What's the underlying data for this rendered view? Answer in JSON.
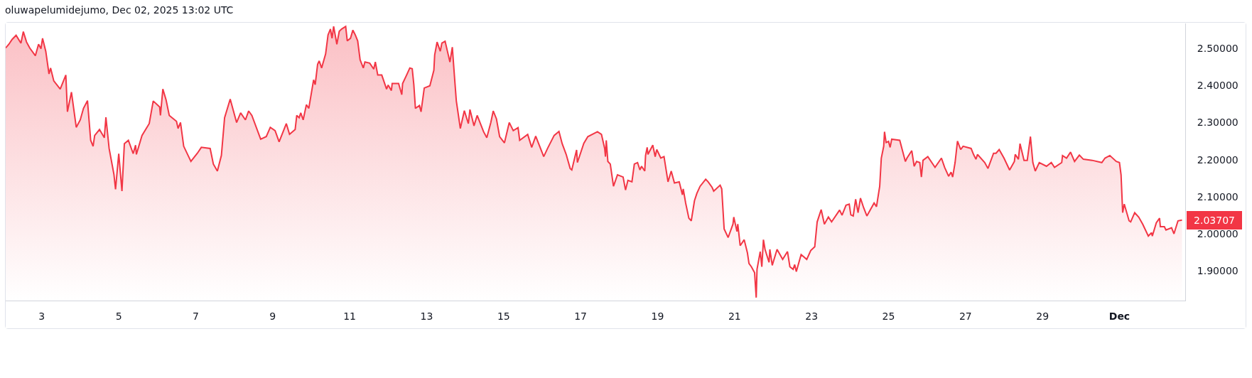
{
  "chart_data": {
    "type": "area",
    "title": "oluwapelumidejumo, Dec 02, 2025 13:02 UTC",
    "x": [
      "2025-11-02T01:30",
      "2025-11-02T03:30",
      "2025-11-02T05:30",
      "2025-11-02T08:00",
      "2025-11-02T11:00",
      "2025-11-02T12:30",
      "2025-11-02T14:30",
      "2025-11-02T16:30",
      "2025-11-02T20:00",
      "2025-11-02T22:00",
      "2025-11-02T23:30",
      "2025-11-03T00:30",
      "2025-11-03T02:30",
      "2025-11-03T04:30",
      "2025-11-03T05:30",
      "2025-11-03T07:30",
      "2025-11-03T11:30",
      "2025-11-03T15:00",
      "2025-11-03T16:00",
      "2025-11-03T18:30",
      "2025-11-03T21:30",
      "2025-11-04T00:00",
      "2025-11-04T02:00",
      "2025-11-04T04:30",
      "2025-11-04T06:30",
      "2025-11-04T08:00",
      "2025-11-04T09:00",
      "2025-11-04T12:00",
      "2025-11-04T15:00",
      "2025-11-04T16:00",
      "2025-11-04T18:00",
      "2025-11-04T21:00",
      "2025-11-04T22:00",
      "2025-11-05T00:00",
      "2025-11-05T02:00",
      "2025-11-05T03:30",
      "2025-11-05T06:00",
      "2025-11-05T09:00",
      "2025-11-05T10:30",
      "2025-11-05T11:00",
      "2025-11-05T14:30",
      "2025-11-05T19:00",
      "2025-11-05T21:30",
      "2025-11-06T01:30",
      "2025-11-06T02:00",
      "2025-11-06T03:30",
      "2025-11-06T05:30",
      "2025-11-06T07:30",
      "2025-11-06T12:00",
      "2025-11-06T13:00",
      "2025-11-06T14:30",
      "2025-11-06T16:30",
      "2025-11-06T21:00",
      "2025-11-07T01:00",
      "2025-11-07T03:30",
      "2025-11-07T09:00",
      "2025-11-07T11:00",
      "2025-11-07T13:30",
      "2025-11-07T16:00",
      "2025-11-07T18:00",
      "2025-11-07T21:30",
      "2025-11-08T01:30",
      "2025-11-08T04:00",
      "2025-11-08T07:00",
      "2025-11-08T09:00",
      "2025-11-08T11:00",
      "2025-11-08T16:30",
      "2025-11-08T20:00",
      "2025-11-08T22:30",
      "2025-11-09T01:30",
      "2025-11-09T04:00",
      "2025-11-09T08:30",
      "2025-11-09T10:30",
      "2025-11-09T14:00",
      "2025-11-09T15:00",
      "2025-11-09T16:30",
      "2025-11-09T17:30",
      "2025-11-09T19:00",
      "2025-11-09T21:00",
      "2025-11-09T22:30",
      "2025-11-10T01:30",
      "2025-11-10T02:30",
      "2025-11-10T04:00",
      "2025-11-10T05:00",
      "2025-11-10T06:30",
      "2025-11-10T09:00",
      "2025-11-10T10:30",
      "2025-11-10T12:00",
      "2025-11-10T13:00",
      "2025-11-10T14:00",
      "2025-11-10T16:00",
      "2025-11-10T17:30",
      "2025-11-10T19:00",
      "2025-11-10T21:30",
      "2025-11-10T22:30",
      "2025-11-11T00:30",
      "2025-11-11T02:00",
      "2025-11-11T03:30",
      "2025-11-11T05:00",
      "2025-11-11T06:30",
      "2025-11-11T08:30",
      "2025-11-11T09:30",
      "2025-11-11T12:30",
      "2025-11-11T15:00",
      "2025-11-11T16:00",
      "2025-11-11T17:30",
      "2025-11-11T20:00",
      "2025-11-11T23:00",
      "2025-11-12T00:00",
      "2025-11-12T02:00",
      "2025-11-12T02:30",
      "2025-11-12T06:30",
      "2025-11-12T08:30",
      "2025-11-12T09:00",
      "2025-11-12T11:30",
      "2025-11-12T13:30",
      "2025-11-12T15:00",
      "2025-11-12T16:00",
      "2025-11-12T17:00",
      "2025-11-12T19:30",
      "2025-11-12T20:30",
      "2025-11-12T22:30",
      "2025-11-13T02:00",
      "2025-11-13T04:30",
      "2025-11-13T05:00",
      "2025-11-13T06:30",
      "2025-11-13T08:30",
      "2025-11-13T09:30",
      "2025-11-13T11:30",
      "2025-11-13T13:30",
      "2025-11-13T14:30",
      "2025-11-13T16:00",
      "2025-11-13T17:30",
      "2025-11-13T18:30",
      "2025-11-13T21:00",
      "2025-11-13T23:30",
      "2025-11-14T02:00",
      "2025-11-14T03:00",
      "2025-11-14T05:30",
      "2025-11-14T07:30",
      "2025-11-14T11:30",
      "2025-11-14T13:30",
      "2025-11-14T16:00",
      "2025-11-14T17:30",
      "2025-11-14T19:30",
      "2025-11-14T21:30",
      "2025-11-15T00:30",
      "2025-11-15T03:30",
      "2025-11-15T06:00",
      "2025-11-15T09:00",
      "2025-11-15T10:00",
      "2025-11-15T15:00",
      "2025-11-15T17:30",
      "2025-11-15T20:00",
      "2025-11-15T23:00",
      "2025-11-16T01:00",
      "2025-11-16T03:30",
      "2025-11-16T07:30",
      "2025-11-16T10:30",
      "2025-11-16T12:30",
      "2025-11-16T15:00",
      "2025-11-16T17:30",
      "2025-11-16T18:30",
      "2025-11-16T21:30",
      "2025-11-16T22:00",
      "2025-11-17T02:00",
      "2025-11-17T04:30",
      "2025-11-17T10:30",
      "2025-11-17T13:00",
      "2025-11-17T15:00",
      "2025-11-17T15:30",
      "2025-11-17T16:00",
      "2025-11-17T17:00",
      "2025-11-17T18:30",
      "2025-11-17T20:30",
      "2025-11-17T23:00",
      "2025-11-18T02:30",
      "2025-11-18T04:00",
      "2025-11-18T05:30",
      "2025-11-18T08:00",
      "2025-11-18T09:30",
      "2025-11-18T11:30",
      "2025-11-18T13:00",
      "2025-11-18T14:00",
      "2025-11-18T16:00",
      "2025-11-18T16:30",
      "2025-11-18T17:30",
      "2025-11-18T18:00",
      "2025-11-18T21:00",
      "2025-11-18T22:30",
      "2025-11-18T23:30",
      "2025-11-19T02:00",
      "2025-11-19T04:00",
      "2025-11-19T06:30",
      "2025-11-19T08:30",
      "2025-11-19T10:30",
      "2025-11-19T13:30",
      "2025-11-19T15:30",
      "2025-11-19T16:00",
      "2025-11-19T17:30",
      "2025-11-19T19:30",
      "2025-11-19T21:00",
      "2025-11-19T23:00",
      "2025-11-20T00:30",
      "2025-11-20T02:30",
      "2025-11-20T06:00",
      "2025-11-20T07:30",
      "2025-11-20T10:00",
      "2025-11-20T11:00",
      "2025-11-20T15:00",
      "2025-11-20T16:00",
      "2025-11-20T17:30",
      "2025-11-20T20:00",
      "2025-11-20T23:00",
      "2025-11-20T23:30",
      "2025-11-21T01:30",
      "2025-11-21T02:00",
      "2025-11-21T03:30",
      "2025-11-21T06:00",
      "2025-11-21T08:00",
      "2025-11-21T09:00",
      "2025-11-21T10:30",
      "2025-11-21T12:30",
      "2025-11-21T13:30",
      "2025-11-21T14:00",
      "2025-11-21T16:00",
      "2025-11-21T17:00",
      "2025-11-21T18:00",
      "2025-11-21T19:00",
      "2025-11-21T21:30",
      "2025-11-21T22:00",
      "2025-11-21T23:30",
      "2025-11-22T02:30",
      "2025-11-22T06:00",
      "2025-11-22T09:00",
      "2025-11-22T10:30",
      "2025-11-22T12:30",
      "2025-11-22T13:30",
      "2025-11-22T14:30",
      "2025-11-22T17:30",
      "2025-11-22T21:00",
      "2025-11-22T23:30",
      "2025-11-23T02:00",
      "2025-11-23T03:30",
      "2025-11-23T06:00",
      "2025-11-23T08:00",
      "2025-11-23T10:30",
      "2025-11-23T12:30",
      "2025-11-23T17:30",
      "2025-11-23T19:00",
      "2025-11-23T21:30",
      "2025-11-23T23:30",
      "2025-11-24T00:30",
      "2025-11-24T02:00",
      "2025-11-24T03:30",
      "2025-11-24T05:00",
      "2025-11-24T06:30",
      "2025-11-24T08:30",
      "2025-11-24T10:30",
      "2025-11-24T15:00",
      "2025-11-24T16:30",
      "2025-11-24T18:30",
      "2025-11-24T19:30",
      "2025-11-24T21:00",
      "2025-11-24T21:30",
      "2025-11-24T22:30",
      "2025-11-25T00:00",
      "2025-11-25T01:00",
      "2025-11-25T02:00",
      "2025-11-25T07:00",
      "2025-11-25T10:30",
      "2025-11-25T11:30",
      "2025-11-25T14:30",
      "2025-11-25T16:00",
      "2025-11-25T17:30",
      "2025-11-25T19:30",
      "2025-11-25T20:30",
      "2025-11-25T21:30",
      "2025-11-26T00:30",
      "2025-11-26T05:00",
      "2025-11-26T09:00",
      "2025-11-26T11:00",
      "2025-11-26T13:30",
      "2025-11-26T15:00",
      "2025-11-26T16:00",
      "2025-11-26T17:30",
      "2025-11-26T19:00",
      "2025-11-26T21:00",
      "2025-11-26T22:30",
      "2025-11-27T03:30",
      "2025-11-27T05:00",
      "2025-11-27T06:30",
      "2025-11-27T07:30",
      "2025-11-27T12:00",
      "2025-11-27T14:00",
      "2025-11-27T17:30",
      "2025-11-27T19:00",
      "2025-11-27T21:00",
      "2025-11-28T00:00",
      "2025-11-28T03:30",
      "2025-11-28T06:30",
      "2025-11-28T07:00",
      "2025-11-28T09:00",
      "2025-11-28T10:00",
      "2025-11-28T12:30",
      "2025-11-28T14:30",
      "2025-11-28T16:30",
      "2025-11-28T18:00",
      "2025-11-28T19:30",
      "2025-11-28T22:00",
      "2025-11-29T02:30",
      "2025-11-29T05:30",
      "2025-11-29T07:30",
      "2025-11-29T12:00",
      "2025-11-29T12:30",
      "2025-11-29T15:00",
      "2025-11-29T17:30",
      "2025-11-29T20:00",
      "2025-11-29T23:00",
      "2025-11-30T01:30",
      "2025-11-30T07:00",
      "2025-11-30T13:00",
      "2025-11-30T15:00",
      "2025-11-30T18:00",
      "2025-11-30T22:00",
      "2025-12-01T00:00",
      "2025-12-01T01:00",
      "2025-12-01T02:00",
      "2025-12-01T03:00",
      "2025-12-01T06:00",
      "2025-12-01T07:00",
      "2025-12-01T09:30",
      "2025-12-01T12:00",
      "2025-12-01T14:30",
      "2025-12-01T18:00",
      "2025-12-01T20:00",
      "2025-12-01T20:30",
      "2025-12-01T23:00",
      "2025-12-02T01:00",
      "2025-12-02T01:30",
      "2025-12-02T04:00",
      "2025-12-02T05:00",
      "2025-12-02T08:30",
      "2025-12-02T10:00",
      "2025-12-02T12:30",
      "2025-12-02T15:00"
    ],
    "series": [
      {
        "color": "#f23645",
        "values": [
          2.501,
          2.511,
          2.524,
          2.535,
          2.514,
          2.545,
          2.517,
          2.501,
          2.48,
          2.511,
          2.499,
          2.527,
          2.492,
          2.431,
          2.447,
          2.412,
          2.39,
          2.428,
          2.329,
          2.382,
          2.287,
          2.307,
          2.338,
          2.359,
          2.252,
          2.236,
          2.265,
          2.281,
          2.259,
          2.314,
          2.23,
          2.16,
          2.12,
          2.216,
          2.115,
          2.243,
          2.252,
          2.216,
          2.239,
          2.214,
          2.265,
          2.297,
          2.358,
          2.342,
          2.319,
          2.39,
          2.361,
          2.319,
          2.303,
          2.284,
          2.3,
          2.236,
          2.195,
          2.217,
          2.233,
          2.23,
          2.188,
          2.169,
          2.211,
          2.313,
          2.363,
          2.3,
          2.326,
          2.307,
          2.331,
          2.319,
          2.255,
          2.262,
          2.287,
          2.278,
          2.248,
          2.297,
          2.268,
          2.281,
          2.319,
          2.313,
          2.326,
          2.307,
          2.348,
          2.338,
          2.415,
          2.402,
          2.457,
          2.466,
          2.447,
          2.485,
          2.536,
          2.552,
          2.527,
          2.559,
          2.511,
          2.546,
          2.552,
          2.559,
          2.52,
          2.527,
          2.549,
          2.536,
          2.52,
          2.469,
          2.447,
          2.463,
          2.46,
          2.444,
          2.463,
          2.428,
          2.428,
          2.39,
          2.401,
          2.386,
          2.405,
          2.405,
          2.375,
          2.405,
          2.428,
          2.447,
          2.445,
          2.402,
          2.338,
          2.346,
          2.329,
          2.393,
          2.399,
          2.441,
          2.482,
          2.517,
          2.492,
          2.514,
          2.519,
          2.482,
          2.463,
          2.503,
          2.415,
          2.358,
          2.284,
          2.332,
          2.297,
          2.335,
          2.291,
          2.319,
          2.275,
          2.259,
          2.3,
          2.331,
          2.31,
          2.262,
          2.245,
          2.3,
          2.278,
          2.286,
          2.252,
          2.268,
          2.233,
          2.263,
          2.23,
          2.208,
          2.231,
          2.265,
          2.276,
          2.243,
          2.214,
          2.176,
          2.172,
          2.226,
          2.192,
          2.244,
          2.262,
          2.275,
          2.268,
          2.23,
          2.208,
          2.252,
          2.195,
          2.188,
          2.128,
          2.159,
          2.153,
          2.118,
          2.144,
          2.14,
          2.188,
          2.192,
          2.172,
          2.182,
          2.169,
          2.211,
          2.233,
          2.214,
          2.239,
          2.208,
          2.227,
          2.204,
          2.208,
          2.14,
          2.169,
          2.137,
          2.14,
          2.105,
          2.121,
          2.083,
          2.042,
          2.035,
          2.089,
          2.109,
          2.128,
          2.147,
          2.14,
          2.125,
          2.115,
          2.131,
          2.121,
          2.013,
          1.99,
          2.026,
          2.045,
          2.006,
          2.026,
          1.968,
          1.984,
          1.949,
          1.92,
          1.911,
          1.895,
          1.828,
          1.904,
          1.952,
          1.911,
          1.984,
          1.958,
          1.923,
          1.958,
          1.915,
          1.958,
          1.931,
          1.952,
          1.911,
          1.904,
          1.917,
          1.898,
          1.944,
          1.931,
          1.955,
          1.965,
          2.032,
          2.065,
          2.026,
          2.045,
          2.032,
          2.064,
          2.05,
          2.077,
          2.08,
          2.051,
          2.048,
          2.093,
          2.057,
          2.096,
          2.07,
          2.048,
          2.083,
          2.073,
          2.128,
          2.204,
          2.236,
          2.275,
          2.246,
          2.249,
          2.233,
          2.255,
          2.252,
          2.195,
          2.204,
          2.224,
          2.182,
          2.195,
          2.192,
          2.153,
          2.198,
          2.208,
          2.179,
          2.204,
          2.179,
          2.155,
          2.166,
          2.153,
          2.192,
          2.25,
          2.227,
          2.236,
          2.23,
          2.214,
          2.201,
          2.214,
          2.192,
          2.176,
          2.217,
          2.217,
          2.227,
          2.204,
          2.172,
          2.195,
          2.214,
          2.201,
          2.243,
          2.198,
          2.198,
          2.262,
          2.192,
          2.169,
          2.192,
          2.182,
          2.192,
          2.179,
          2.192,
          2.211,
          2.204,
          2.22,
          2.195,
          2.212,
          2.201,
          2.198,
          2.192,
          2.204,
          2.211,
          2.195,
          2.192,
          2.159,
          2.057,
          2.08,
          2.035,
          2.032,
          2.057,
          2.045,
          2.026,
          1.994,
          2.003,
          1.994,
          2.03,
          2.042,
          2.019,
          2.019,
          2.01,
          2.016,
          2.0,
          2.035,
          2.03707
        ],
        "value_labels": [
          null,
          null,
          null,
          null,
          null,
          null,
          null,
          null,
          null,
          null,
          null,
          null,
          null,
          null,
          null,
          null,
          null,
          null,
          null,
          null,
          null,
          null,
          null,
          null,
          null,
          null,
          null,
          null,
          null,
          null,
          null,
          null,
          null,
          null,
          null,
          null,
          null,
          null,
          null,
          null,
          null,
          null,
          null,
          null,
          null,
          null,
          null,
          null,
          null,
          null,
          null,
          null,
          null,
          null,
          null,
          null,
          null,
          null,
          null,
          null,
          null,
          null,
          null,
          null,
          null,
          null,
          null,
          null,
          null,
          null,
          null,
          null,
          null,
          null,
          null,
          null,
          null,
          null,
          null,
          null,
          null,
          null,
          null,
          null,
          null,
          null,
          null,
          null,
          null,
          null,
          null,
          null,
          null,
          null,
          null,
          null,
          null,
          null,
          null,
          null,
          null,
          null,
          null,
          null,
          null,
          null,
          null,
          null,
          null,
          null,
          null,
          null,
          null,
          null,
          null,
          null,
          null,
          null,
          null,
          null,
          null,
          null,
          null,
          null,
          null,
          null,
          null,
          null,
          null,
          null,
          null,
          null,
          null,
          null,
          null,
          null,
          null,
          null,
          null,
          null,
          null,
          null,
          null,
          null,
          null,
          null,
          null,
          null,
          null,
          null,
          null,
          null,
          null,
          null,
          null,
          null,
          null,
          null,
          null,
          null,
          null,
          null,
          null,
          null,
          null,
          null,
          null,
          null,
          null,
          null,
          null,
          null,
          null,
          null,
          null,
          null,
          null,
          null,
          null,
          null,
          null,
          null,
          null,
          null,
          null,
          null,
          null,
          null,
          null,
          null,
          null,
          null,
          null,
          null,
          null,
          null,
          null,
          null,
          null,
          null,
          null,
          null,
          null,
          null,
          null,
          null,
          null,
          null,
          null,
          null,
          null,
          null,
          null,
          null,
          null,
          null,
          null,
          null,
          null,
          null,
          null,
          null,
          null,
          null,
          null,
          null,
          null,
          null,
          null,
          null,
          null,
          null,
          null,
          null,
          null,
          null,
          null,
          null,
          null,
          null,
          null,
          null,
          null,
          null,
          null,
          null,
          null,
          null,
          null,
          null,
          null,
          null,
          null,
          null,
          null,
          null,
          null,
          null,
          null,
          null,
          null,
          null,
          null,
          null,
          null,
          null,
          null,
          null,
          null,
          null,
          null,
          null,
          null,
          null,
          null,
          null,
          null,
          null,
          null,
          null,
          null,
          null,
          null,
          null,
          null,
          null,
          null,
          null,
          null,
          null,
          null,
          null,
          null,
          null,
          null,
          null,
          null,
          null,
          null,
          null,
          null,
          null,
          null,
          null,
          null,
          null,
          null,
          null,
          null,
          null,
          null,
          null,
          null,
          null,
          null,
          null,
          null,
          null,
          null,
          null,
          null,
          null,
          null,
          null,
          null,
          null,
          null,
          null,
          null,
          null,
          null,
          null,
          null,
          null,
          null,
          null,
          null,
          null,
          null,
          null,
          null,
          null,
          null,
          null,
          null,
          "2.03707"
        ]
      }
    ],
    "xlim": [
      "2025-11-02T01:30",
      "2025-12-02T17:00"
    ],
    "xticks": [
      {
        "value": "2025-11-03",
        "label": "3"
      },
      {
        "value": "2025-11-05",
        "label": "5"
      },
      {
        "value": "2025-11-07",
        "label": "7"
      },
      {
        "value": "2025-11-09",
        "label": "9"
      },
      {
        "value": "2025-11-11",
        "label": "11"
      },
      {
        "value": "2025-11-13",
        "label": "13"
      },
      {
        "value": "2025-11-15",
        "label": "15"
      },
      {
        "value": "2025-11-17",
        "label": "17"
      },
      {
        "value": "2025-11-19",
        "label": "19"
      },
      {
        "value": "2025-11-21",
        "label": "21"
      },
      {
        "value": "2025-11-23",
        "label": "23"
      },
      {
        "value": "2025-11-25",
        "label": "25"
      },
      {
        "value": "2025-11-27",
        "label": "27"
      },
      {
        "value": "2025-11-29",
        "label": "29"
      },
      {
        "value": "2025-12-01",
        "label": "Dec"
      }
    ],
    "ylim": [
      1.82,
      2.567
    ],
    "yticks": [
      {
        "value": 1.9,
        "label": "1.90000"
      },
      {
        "value": 2.0,
        "label": "2.00000"
      },
      {
        "value": 2.1,
        "label": "2.10000"
      },
      {
        "value": 2.2,
        "label": "2.20000"
      },
      {
        "value": 2.3,
        "label": "2.30000"
      },
      {
        "value": 2.4,
        "label": "2.40000"
      },
      {
        "value": 2.5,
        "label": "2.50000"
      }
    ]
  }
}
